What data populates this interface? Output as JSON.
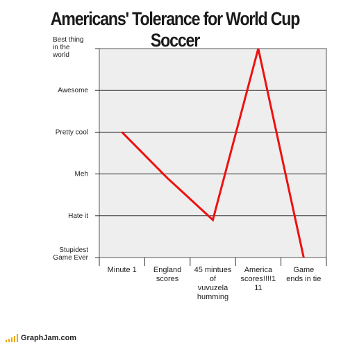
{
  "chart_data": {
    "type": "line",
    "title": "Americans' Tolerance for World Cup Soccer",
    "xlabel": "",
    "ylabel": "",
    "categories": [
      "Minute 1",
      "England scores",
      "45 mintues of vuvuzela humming",
      "America scores!!!!111",
      "Game ends in tie"
    ],
    "category_lines": [
      [
        "Minute 1"
      ],
      [
        "England",
        "scores"
      ],
      [
        "45 mintues",
        "of",
        "vuvuzela",
        "humming"
      ],
      [
        "America",
        "scores!!!!1",
        "11"
      ],
      [
        "Game",
        "ends in tie"
      ]
    ],
    "y_levels": [
      "Stupidest Game Ever",
      "Hate it",
      "Meh",
      "Pretty cool",
      "Awesome",
      "Best thing in the world"
    ],
    "y_level_lines": [
      [
        "Stupidest",
        "Game Ever"
      ],
      [
        "Hate it"
      ],
      [
        "Meh"
      ],
      [
        "Pretty cool"
      ],
      [
        "Awesome"
      ],
      [
        "Best thing",
        "in the",
        "world"
      ]
    ],
    "ylim": [
      0,
      5
    ],
    "series": [
      {
        "values": [
          3,
          1.9,
          0.9,
          5,
          0
        ],
        "color": "#ee1111"
      }
    ],
    "grid": true,
    "background": "#eeeeee"
  },
  "footer": {
    "brand": "GraphJam.com"
  }
}
